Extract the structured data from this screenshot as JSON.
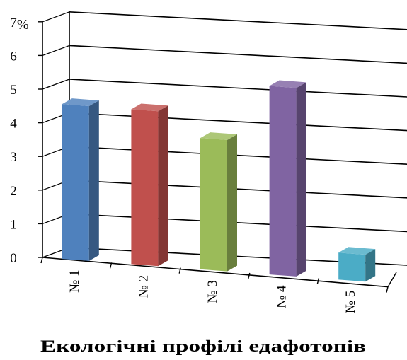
{
  "chart_data": {
    "type": "bar",
    "style": "3d-column",
    "categories": [
      "№ 1",
      "№ 2",
      "№ 3",
      "№ 4",
      "№ 5"
    ],
    "values": [
      4.6,
      4.6,
      3.9,
      5.6,
      0.8
    ],
    "colors": [
      "#4f81bd",
      "#c0504d",
      "#9bbb59",
      "#8064a2",
      "#4bacc6"
    ],
    "y_unit": "%",
    "xlabel": "Екологічні профілі едафотопів",
    "ylim": [
      0,
      7
    ],
    "yticks": [
      0,
      1,
      2,
      3,
      4,
      5,
      6,
      7
    ],
    "grid": true,
    "legend": "none"
  }
}
